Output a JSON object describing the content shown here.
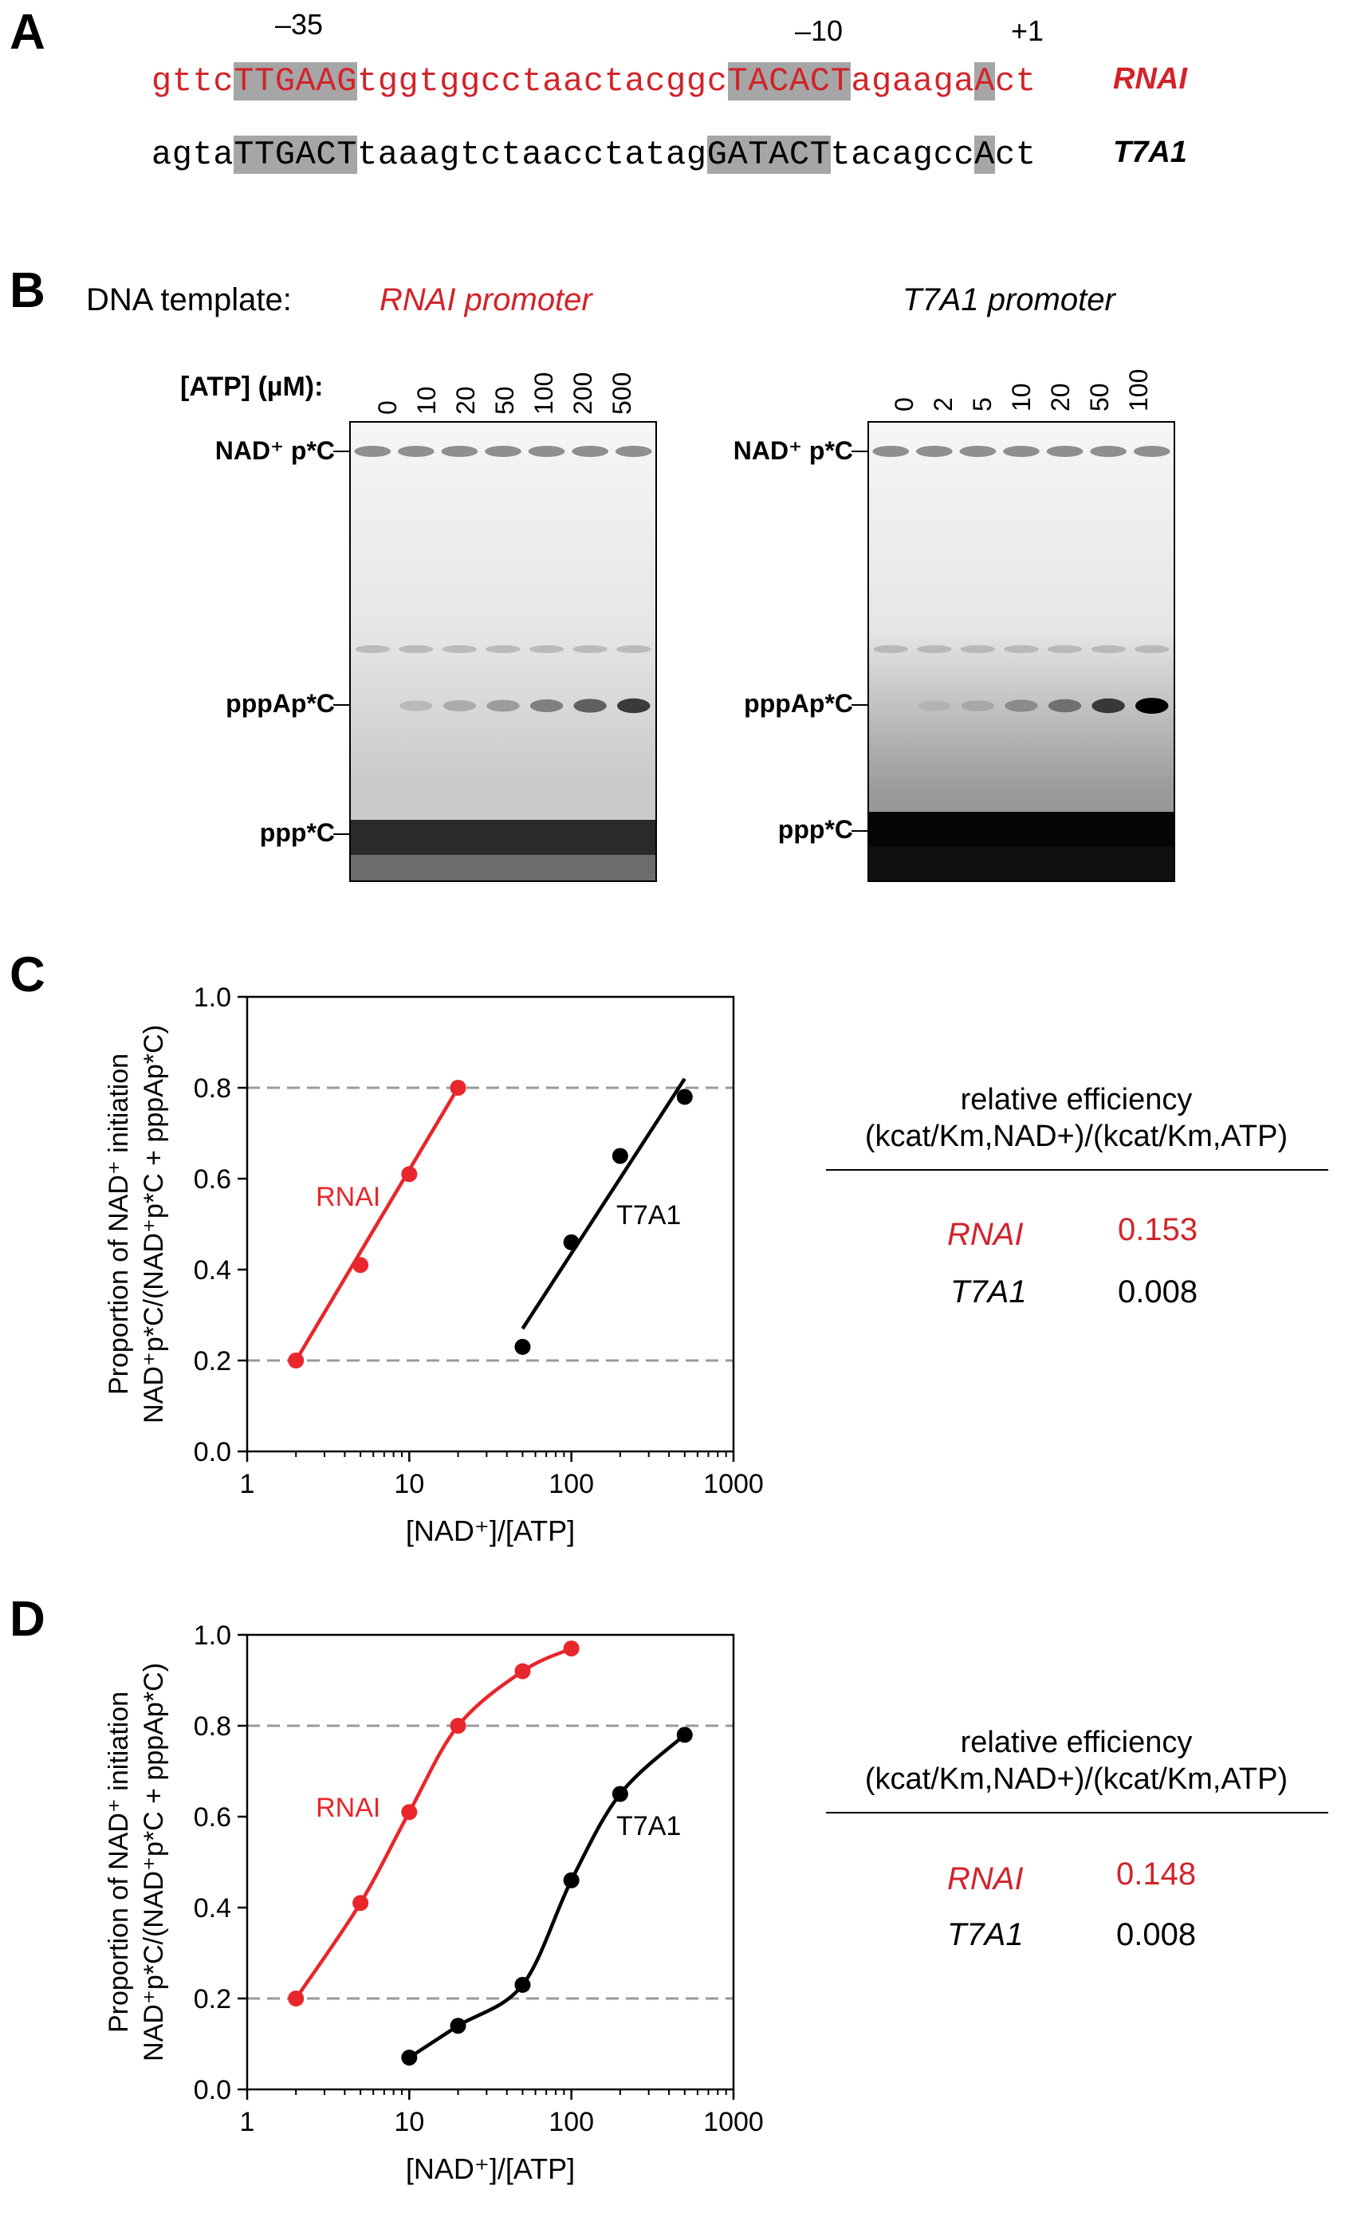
{
  "panelA": {
    "letter": "A",
    "positions": [
      "–35",
      "–10",
      "+1"
    ],
    "sequences": [
      {
        "name": "RNAI",
        "color": "#d2232a",
        "segments": [
          "gttc",
          "TTGAAG",
          "tggtggcctaactacggc",
          "TACACT",
          "agaaga",
          "A",
          "ct"
        ]
      },
      {
        "name": "T7A1",
        "color": "#000000",
        "segments": [
          "agta",
          "TTGACT",
          "taaagtctaacctatag",
          "GATACT",
          "tacagcc",
          "A",
          "ct"
        ]
      }
    ]
  },
  "panelB": {
    "letter": "B",
    "dna_template_label": "DNA template:",
    "atp_label": "[ATP] (µM):",
    "gels": [
      {
        "promoter_label": "RNAI promoter",
        "promoter_color": "#d2232a",
        "lanes": [
          "0",
          "10",
          "20",
          "50",
          "100",
          "200",
          "500"
        ],
        "band_labels": [
          "NAD⁺ p*C",
          "pppAp*C",
          "ppp*C"
        ],
        "pppApC_intensity": [
          0.0,
          0.15,
          0.25,
          0.35,
          0.5,
          0.65,
          0.8
        ]
      },
      {
        "promoter_label": "T7A1 promoter",
        "promoter_color": "#000000",
        "lanes": [
          "0",
          "2",
          "5",
          "10",
          "20",
          "50",
          "100"
        ],
        "band_labels": [
          "NAD⁺ p*C",
          "pppAp*C",
          "ppp*C"
        ],
        "pppApC_intensity": [
          0.0,
          0.1,
          0.2,
          0.4,
          0.55,
          0.8,
          1.0
        ]
      }
    ]
  },
  "panelC": {
    "letter": "C",
    "relative_efficiency": {
      "title_line1": "relative efficiency",
      "title_line2": "(kcat/Km,NAD+)/(kcat/Km,ATP)",
      "rows": [
        {
          "name": "RNAI",
          "value": "0.153",
          "color": "#d2232a"
        },
        {
          "name": "T7A1",
          "value": "0.008",
          "color": "#000000"
        }
      ]
    }
  },
  "panelD": {
    "letter": "D",
    "relative_efficiency": {
      "title_line1": "relative efficiency",
      "title_line2": "(kcat/Km,NAD+)/(kcat/Km,ATP)",
      "rows": [
        {
          "name": "RNAI",
          "value": "0.148",
          "color": "#d2232a"
        },
        {
          "name": "T7A1",
          "value": "0.008",
          "color": "#000000"
        }
      ]
    }
  },
  "chart_data": [
    {
      "type": "scatter",
      "panel": "C",
      "fit": "linear in log(x)",
      "xscale": "log",
      "xlim": [
        1,
        1000
      ],
      "ylim": [
        0.0,
        1.0
      ],
      "xticks": [
        "1",
        "10",
        "100",
        "1000"
      ],
      "yticks": [
        "0.0",
        "0.2",
        "0.4",
        "0.6",
        "0.8",
        "1.0"
      ],
      "xlabel": "[NAD⁺]/[ATP]",
      "ylabel_line1": "Proportion of NAD⁺ initiation",
      "ylabel_line2": "NAD⁺p*C/(NAD⁺p*C + pppAp*C)",
      "reference_lines": [
        0.2,
        0.8
      ],
      "series": [
        {
          "name": "RNAI",
          "color": "#e8262b",
          "points": [
            [
              2,
              0.2
            ],
            [
              5,
              0.41
            ],
            [
              10,
              0.61
            ],
            [
              20,
              0.8
            ]
          ],
          "fit_range": [
            2,
            20
          ],
          "fit_y": [
            0.2,
            0.8
          ]
        },
        {
          "name": "T7A1",
          "color": "#000000",
          "points": [
            [
              50,
              0.23
            ],
            [
              100,
              0.46
            ],
            [
              200,
              0.65
            ],
            [
              500,
              0.78
            ]
          ],
          "fit_range": [
            50,
            500
          ],
          "fit_y": [
            0.27,
            0.82
          ]
        }
      ]
    },
    {
      "type": "scatter",
      "panel": "D",
      "fit": "sigmoid",
      "xscale": "log",
      "xlim": [
        1,
        1000
      ],
      "ylim": [
        0.0,
        1.0
      ],
      "xticks": [
        "1",
        "10",
        "100",
        "1000"
      ],
      "yticks": [
        "0.0",
        "0.2",
        "0.4",
        "0.6",
        "0.8",
        "1.0"
      ],
      "xlabel": "[NAD⁺]/[ATP]",
      "ylabel_line1": "Proportion of NAD⁺ initiation",
      "ylabel_line2": "NAD⁺p*C/(NAD⁺p*C + pppAp*C)",
      "reference_lines": [
        0.2,
        0.8
      ],
      "series": [
        {
          "name": "RNAI",
          "color": "#e8262b",
          "points": [
            [
              2,
              0.2
            ],
            [
              5,
              0.41
            ],
            [
              10,
              0.61
            ],
            [
              20,
              0.8
            ],
            [
              50,
              0.92
            ],
            [
              100,
              0.97
            ]
          ],
          "fit_range": [
            2,
            100
          ]
        },
        {
          "name": "T7A1",
          "color": "#000000",
          "points": [
            [
              10,
              0.07
            ],
            [
              20,
              0.14
            ],
            [
              50,
              0.23
            ],
            [
              100,
              0.46
            ],
            [
              200,
              0.65
            ],
            [
              500,
              0.78
            ]
          ],
          "fit_range": [
            10,
            500
          ]
        }
      ]
    }
  ]
}
